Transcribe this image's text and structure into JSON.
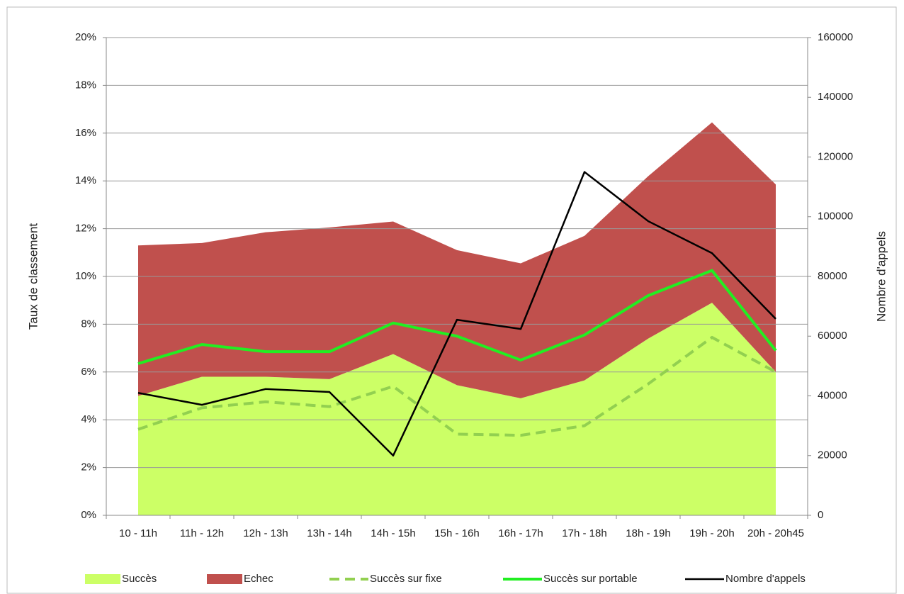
{
  "chart_data": {
    "type": "stacked-area-line",
    "categories": [
      "10 - 11h",
      "11h - 12h",
      "12h - 13h",
      "13h - 14h",
      "14h - 15h",
      "15h - 16h",
      "16h - 17h",
      "17h - 18h",
      "18h - 19h",
      "19h - 20h",
      "20h - 20h45"
    ],
    "y_label": "Taux de classement",
    "y2_label": "Nombre d'appels",
    "ylim": [
      0,
      20
    ],
    "yticks": [
      {
        "value": 0,
        "label": "0%"
      },
      {
        "value": 2,
        "label": "2%"
      },
      {
        "value": 4,
        "label": "4%"
      },
      {
        "value": 6,
        "label": "6%"
      },
      {
        "value": 8,
        "label": "8%"
      },
      {
        "value": 10,
        "label": "10%"
      },
      {
        "value": 12,
        "label": "12%"
      },
      {
        "value": 14,
        "label": "14%"
      },
      {
        "value": 16,
        "label": "16%"
      },
      {
        "value": 18,
        "label": "18%"
      },
      {
        "value": 20,
        "label": "20%"
      }
    ],
    "y2lim": [
      0,
      160000
    ],
    "y2ticks": [
      0,
      20000,
      40000,
      60000,
      80000,
      100000,
      120000,
      140000,
      160000
    ],
    "grid": true,
    "legend": "bottom",
    "series": [
      {
        "name": "Succès",
        "kind": "area",
        "color": "#ccff66",
        "values": [
          5.0,
          5.8,
          5.8,
          5.7,
          6.75,
          5.45,
          4.9,
          5.65,
          7.4,
          8.9,
          6.0
        ]
      },
      {
        "name": "Echec",
        "kind": "area",
        "color": "#c0504d",
        "values": [
          6.3,
          5.6,
          6.05,
          6.35,
          5.55,
          5.65,
          5.65,
          6.05,
          6.8,
          7.55,
          7.85
        ]
      },
      {
        "name": "Succès sur fixe",
        "kind": "line",
        "dashed": true,
        "color": "#92d050",
        "values": [
          3.6,
          4.5,
          4.75,
          4.55,
          5.4,
          3.4,
          3.35,
          3.75,
          5.5,
          7.45,
          6.0
        ]
      },
      {
        "name": "Succès sur portable",
        "kind": "line",
        "color": "#22ee22",
        "values": [
          6.35,
          7.15,
          6.85,
          6.85,
          8.05,
          7.5,
          6.5,
          7.55,
          9.2,
          10.25,
          6.9
        ]
      },
      {
        "name": "Nombre d'appels",
        "kind": "line",
        "axis": "y2",
        "color": "#000000",
        "values": [
          41000,
          37000,
          42300,
          41300,
          20000,
          65500,
          62400,
          115000,
          98500,
          87800,
          65800
        ]
      }
    ]
  }
}
